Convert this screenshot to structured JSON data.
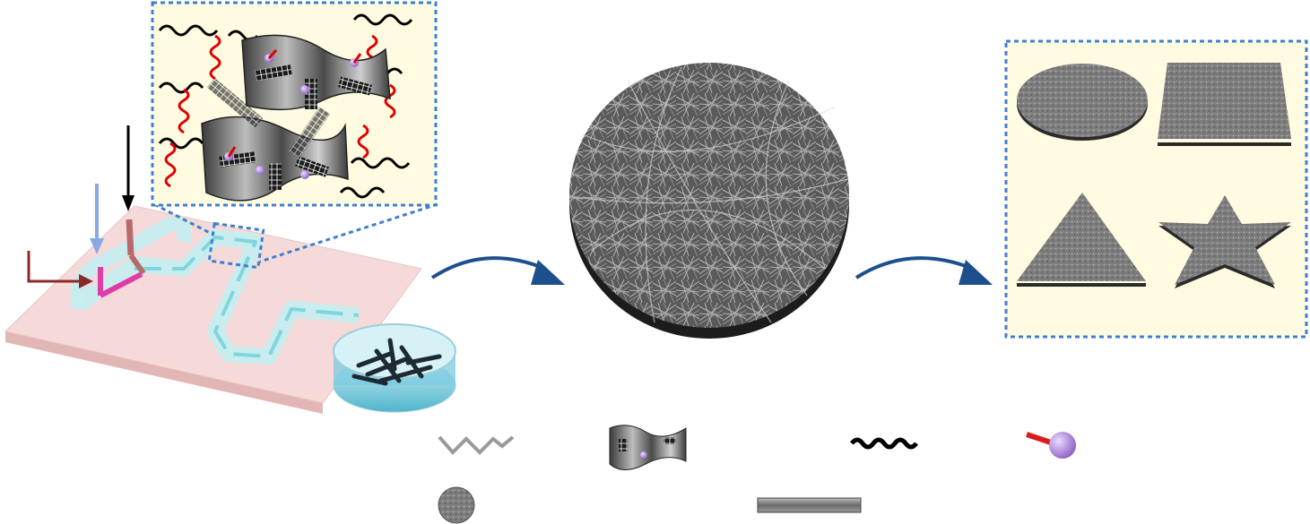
{
  "figure": {
    "panels": [
      "microfluidic-fabrication",
      "fibrous-membrane",
      "shaped-membranes"
    ],
    "shapes": [
      "circle",
      "square",
      "triangle",
      "star"
    ],
    "legend_items": [
      "polymer-chain",
      "nanosheet",
      "black-polymer-chain",
      "ligand-particle",
      "membrane-disc",
      "fiber-rod"
    ],
    "colors": {
      "background": "#ffffff",
      "chip": "#f6dada",
      "chip_side": "#e3b6b6",
      "channel": "#7fd6dc",
      "inset_fill": "#fffbe0",
      "inset_border": "#3f7fd0",
      "process_arrow": "#1d4f8c",
      "red_chain": "#e00000",
      "membrane": "#8a8a8a",
      "membrane_dark": "#2a2a2a",
      "inlet_blue": "#8aa8e6",
      "inlet_dark_red": "#8b2a2a",
      "inlet_magenta": "#e23aa6",
      "particle": "#b58ce0"
    }
  }
}
